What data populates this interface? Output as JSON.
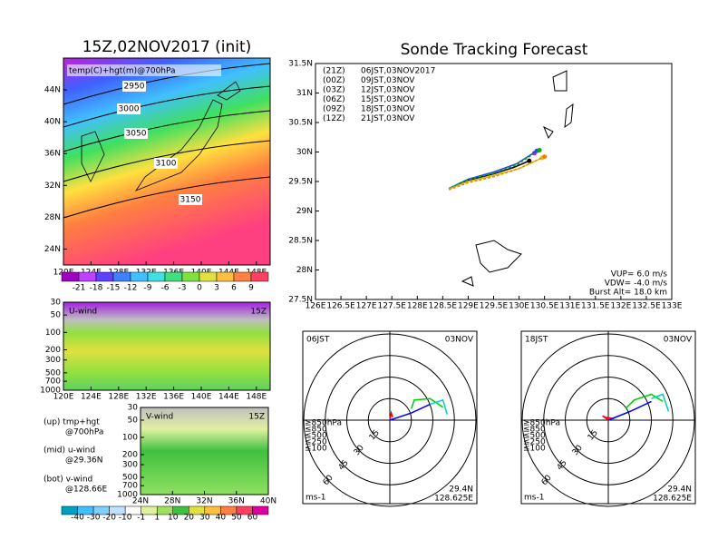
{
  "chart_data": [
    {
      "type": "map",
      "title": "15Z,02NOV2017 (init)",
      "subtitle": "temp(C)+hgt(m)@700hPa",
      "xlim": [
        120,
        150
      ],
      "xticks": [
        {
          "value": 120,
          "label": "120E"
        },
        {
          "value": 124,
          "label": "124E"
        },
        {
          "value": 128,
          "label": "128E"
        },
        {
          "value": 132,
          "label": "132E"
        },
        {
          "value": 136,
          "label": "136E"
        },
        {
          "value": 140,
          "label": "140E"
        },
        {
          "value": 144,
          "label": "144E"
        },
        {
          "value": 148,
          "label": "148E"
        }
      ],
      "ylim": [
        22,
        48
      ],
      "yticks": [
        {
          "value": 24,
          "label": "24N"
        },
        {
          "value": 28,
          "label": "28N"
        },
        {
          "value": 32,
          "label": "32N"
        },
        {
          "value": 36,
          "label": "36N"
        },
        {
          "value": 40,
          "label": "40N"
        },
        {
          "value": 44,
          "label": "44N"
        }
      ],
      "contour_levels": [
        2950,
        3000,
        3050,
        3100,
        3150
      ],
      "colorbar_ticks": [
        -21,
        -18,
        -15,
        -12,
        -9,
        -6,
        -3,
        0,
        3,
        6,
        9
      ]
    },
    {
      "type": "cross-section",
      "title": "U-wind",
      "time": "15Z",
      "xlim": [
        120,
        150
      ],
      "xticks": [
        {
          "value": 120,
          "label": "120E"
        },
        {
          "value": 124,
          "label": "124E"
        },
        {
          "value": 128,
          "label": "128E"
        },
        {
          "value": 132,
          "label": "132E"
        },
        {
          "value": 136,
          "label": "136E"
        },
        {
          "value": 140,
          "label": "140E"
        },
        {
          "value": 144,
          "label": "144E"
        },
        {
          "value": 148,
          "label": "148E"
        }
      ],
      "ylim": [
        1000,
        30
      ],
      "log": true,
      "yticks": [
        30,
        50,
        100,
        200,
        300,
        500,
        700,
        1000
      ]
    },
    {
      "type": "cross-section",
      "title": "V-wind",
      "time": "15Z",
      "xlim": [
        24,
        40
      ],
      "xticks": [
        {
          "value": 24,
          "label": "24N"
        },
        {
          "value": 28,
          "label": "28N"
        },
        {
          "value": 32,
          "label": "32N"
        },
        {
          "value": 36,
          "label": "36N"
        },
        {
          "value": 40,
          "label": "40N"
        }
      ],
      "ylim": [
        1000,
        30
      ],
      "log": true,
      "yticks": [
        30,
        50,
        100,
        200,
        300,
        500,
        700,
        1000
      ],
      "colorbar_ticks": [
        -40,
        -30,
        -20,
        -10,
        -1,
        1,
        10,
        20,
        30,
        40,
        50,
        60
      ]
    },
    {
      "type": "line",
      "title": "Sonde Tracking Forecast",
      "xlim": [
        126,
        133
      ],
      "xticks": [
        {
          "value": 126,
          "label": "126E"
        },
        {
          "value": 126.5,
          "label": "126.5E"
        },
        {
          "value": 127,
          "label": "127E"
        },
        {
          "value": 127.5,
          "label": "127.5E"
        },
        {
          "value": 128,
          "label": "128E"
        },
        {
          "value": 128.5,
          "label": "128.5E"
        },
        {
          "value": 129,
          "label": "129E"
        },
        {
          "value": 129.5,
          "label": "129.5E"
        },
        {
          "value": 130,
          "label": "130E"
        },
        {
          "value": 130.5,
          "label": "130.5E"
        },
        {
          "value": 131,
          "label": "131E"
        },
        {
          "value": 131.5,
          "label": "131.5E"
        },
        {
          "value": 132,
          "label": "132E"
        },
        {
          "value": 132.5,
          "label": "132.5E"
        },
        {
          "value": 133,
          "label": "133E"
        }
      ],
      "ylim": [
        27.5,
        31.5
      ],
      "yticks": [
        {
          "value": 27.5,
          "label": "27.5N"
        },
        {
          "value": 28,
          "label": "28N"
        },
        {
          "value": 28.5,
          "label": "28.5N"
        },
        {
          "value": 29,
          "label": "29N"
        },
        {
          "value": 29.5,
          "label": "29.5N"
        },
        {
          "value": 30,
          "label": "30N"
        },
        {
          "value": 30.5,
          "label": "30.5N"
        },
        {
          "value": 31,
          "label": "31N"
        },
        {
          "value": 31.5,
          "label": "31.5N"
        }
      ],
      "series": [
        {
          "name": "(21Z)",
          "label": "06JST,03NOV2017",
          "color": "#000000",
          "x": [
            128.62,
            129.0,
            129.5,
            129.9,
            130.2
          ],
          "values": [
            29.38,
            29.52,
            29.63,
            29.74,
            29.85
          ]
        },
        {
          "name": "(00Z)",
          "label": "09JST,03NOV",
          "color": "#a020c0",
          "x": [
            128.62,
            129.0,
            129.5,
            129.95,
            130.3
          ],
          "values": [
            29.38,
            29.53,
            29.65,
            29.78,
            29.98
          ]
        },
        {
          "name": "(03Z)",
          "label": "12JST,03NOV",
          "color": "#2040ff",
          "x": [
            128.62,
            129.0,
            129.5,
            129.95,
            130.35
          ],
          "values": [
            29.38,
            29.54,
            29.66,
            29.8,
            30.02
          ]
        },
        {
          "name": "(06Z)",
          "label": "15JST,03NOV",
          "color": "#00b000",
          "x": [
            128.62,
            129.0,
            129.5,
            129.95,
            130.4
          ],
          "values": [
            29.38,
            29.53,
            29.64,
            29.79,
            30.03
          ]
        },
        {
          "name": "(09Z)",
          "label": "18JST,03NOV",
          "color": "#e0c000",
          "x": [
            128.62,
            129.0,
            129.5,
            130.0,
            130.45
          ],
          "values": [
            29.37,
            29.5,
            29.6,
            29.72,
            29.9
          ]
        },
        {
          "name": "(12Z)",
          "label": "21JST,03NOV",
          "color": "#f08000",
          "x": [
            128.62,
            129.0,
            129.5,
            130.0,
            130.5
          ],
          "values": [
            29.36,
            29.48,
            29.58,
            29.72,
            29.92
          ]
        }
      ],
      "annotations": [
        "VUP= 6.0 m/s",
        "VDW= -4.0 m/s",
        "Burst Alt= 18.0 km"
      ]
    },
    {
      "type": "polar",
      "title": "06JST",
      "date": "03NOV",
      "rlim": [
        0,
        60
      ],
      "rings": [
        15,
        30,
        45,
        60
      ],
      "levels": [
        "≥850hPa",
        "≤850",
        "≤500",
        "≤250",
        "≤100"
      ],
      "level_colors": [
        "#ff0000",
        "#ff9900",
        "#00cc00",
        "#00cccc",
        "#0000ff"
      ],
      "unit": "ms-1",
      "location": [
        "29.4N",
        "128.625E"
      ],
      "series": [
        {
          "color": "#ff0000",
          "u": [
            0,
            1,
            2
          ],
          "v": [
            0,
            5,
            2
          ]
        },
        {
          "color": "#0000ff",
          "u": [
            0,
            15,
            28
          ],
          "v": [
            0,
            5,
            11
          ]
        },
        {
          "color": "#00cc00",
          "u": [
            15,
            17,
            28,
            37
          ],
          "v": [
            8,
            14,
            15,
            9
          ]
        },
        {
          "color": "#00cccc",
          "u": [
            28,
            37,
            40
          ],
          "v": [
            11,
            14,
            4
          ]
        }
      ]
    },
    {
      "type": "polar",
      "title": "18JST",
      "date": "03NOV",
      "rlim": [
        0,
        60
      ],
      "rings": [
        15,
        30,
        45,
        60
      ],
      "levels": [
        "≥850hPa",
        "≤850",
        "≤500",
        "≤250",
        "≤100"
      ],
      "level_colors": [
        "#ff0000",
        "#ff9900",
        "#00cc00",
        "#00cccc",
        "#0000ff"
      ],
      "unit": "ms-1",
      "location": [
        "29.4N",
        "128.625E"
      ],
      "series": [
        {
          "color": "#ff0000",
          "u": [
            0,
            -4,
            -2,
            4
          ],
          "v": [
            0,
            3,
            2,
            1
          ]
        },
        {
          "color": "#0000ff",
          "u": [
            0,
            15,
            30
          ],
          "v": [
            0,
            6,
            13
          ]
        },
        {
          "color": "#00cc00",
          "u": [
            12,
            18,
            30,
            38
          ],
          "v": [
            8,
            14,
            18,
            13
          ]
        },
        {
          "color": "#00cccc",
          "u": [
            30,
            38,
            42
          ],
          "v": [
            15,
            18,
            6
          ]
        }
      ]
    }
  ],
  "notes": [
    "(up) tmp+hgt",
    "@700hPa",
    "(mid) u-wind",
    "@29.36N",
    "(bot) v-wind",
    "@128.66E"
  ]
}
